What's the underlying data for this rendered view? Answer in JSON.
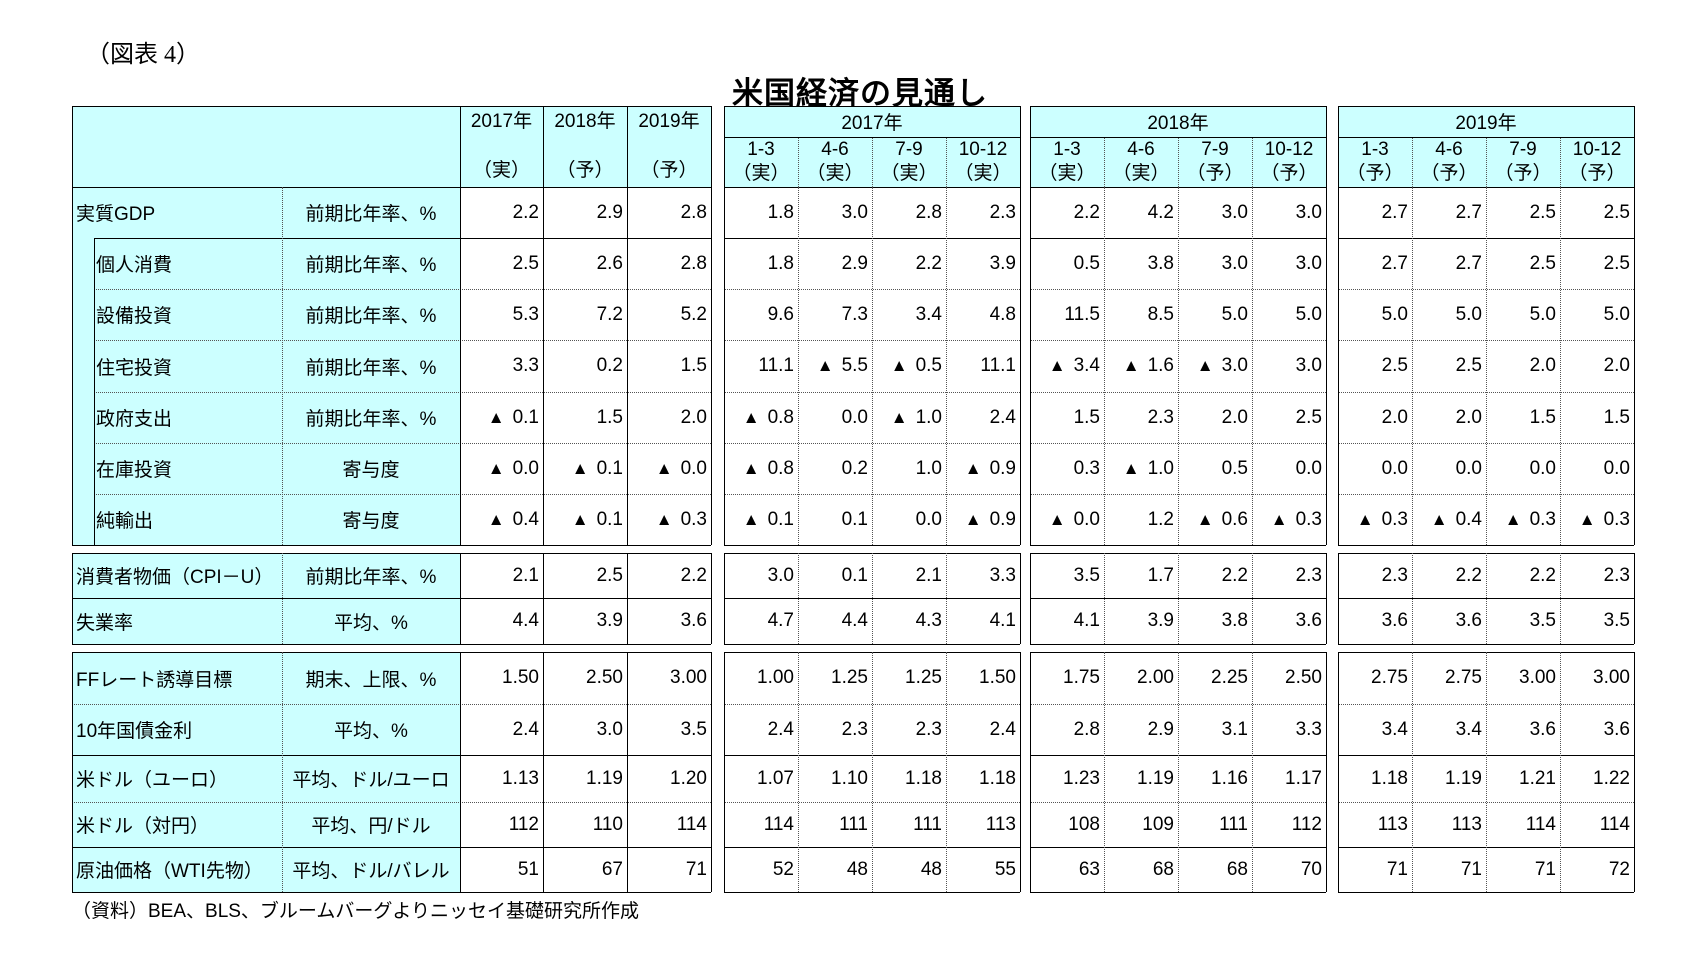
{
  "figure_label": "（図表 4）",
  "title": "米国経済の見通し",
  "header": {
    "annual": [
      {
        "year": "2017年",
        "status": "（実）"
      },
      {
        "year": "2018年",
        "status": "（予）"
      },
      {
        "year": "2019年",
        "status": "（予）"
      }
    ],
    "blocks": [
      {
        "year": "2017年",
        "quarters": [
          {
            "q": "1-3",
            "status": "（実）"
          },
          {
            "q": "4-6",
            "status": "（実）"
          },
          {
            "q": "7-9",
            "status": "（実）"
          },
          {
            "q": "10-12",
            "status": "（実）"
          }
        ]
      },
      {
        "year": "2018年",
        "quarters": [
          {
            "q": "1-3",
            "status": "（実）"
          },
          {
            "q": "4-6",
            "status": "（実）"
          },
          {
            "q": "7-9",
            "status": "（予）"
          },
          {
            "q": "10-12",
            "status": "（予）"
          }
        ]
      },
      {
        "year": "2019年",
        "quarters": [
          {
            "q": "1-3",
            "status": "（予）"
          },
          {
            "q": "4-6",
            "status": "（予）"
          },
          {
            "q": "7-9",
            "status": "（予）"
          },
          {
            "q": "10-12",
            "status": "（予）"
          }
        ]
      }
    ]
  },
  "negative_marker": "▲",
  "rows": [
    {
      "label": "実質GDP",
      "unit": "前期比年率、%",
      "annual": [
        "2.2",
        "2.9",
        "2.8"
      ],
      "q2017": [
        "1.8",
        "3.0",
        "2.8",
        "2.3"
      ],
      "q2018": [
        "2.2",
        "4.2",
        "3.0",
        "3.0"
      ],
      "q2019": [
        "2.7",
        "2.7",
        "2.5",
        "2.5"
      ]
    },
    {
      "label": "個人消費",
      "unit": "前期比年率、%",
      "annual": [
        "2.5",
        "2.6",
        "2.8"
      ],
      "q2017": [
        "1.8",
        "2.9",
        "2.2",
        "3.9"
      ],
      "q2018": [
        "0.5",
        "3.8",
        "3.0",
        "3.0"
      ],
      "q2019": [
        "2.7",
        "2.7",
        "2.5",
        "2.5"
      ]
    },
    {
      "label": "設備投資",
      "unit": "前期比年率、%",
      "annual": [
        "5.3",
        "7.2",
        "5.2"
      ],
      "q2017": [
        "9.6",
        "7.3",
        "3.4",
        "4.8"
      ],
      "q2018": [
        "11.5",
        "8.5",
        "5.0",
        "5.0"
      ],
      "q2019": [
        "5.0",
        "5.0",
        "5.0",
        "5.0"
      ]
    },
    {
      "label": "住宅投資",
      "unit": "前期比年率、%",
      "annual": [
        "3.3",
        "0.2",
        "1.5"
      ],
      "q2017": [
        "11.1",
        "▲ 5.5",
        "▲ 0.5",
        "11.1"
      ],
      "q2018": [
        "▲ 3.4",
        "▲ 1.6",
        "▲ 3.0",
        "3.0"
      ],
      "q2019": [
        "2.5",
        "2.5",
        "2.0",
        "2.0"
      ]
    },
    {
      "label": "政府支出",
      "unit": "前期比年率、%",
      "annual": [
        "▲ 0.1",
        "1.5",
        "2.0"
      ],
      "q2017": [
        "▲ 0.8",
        "0.0",
        "▲ 1.0",
        "2.4"
      ],
      "q2018": [
        "1.5",
        "2.3",
        "2.0",
        "2.5"
      ],
      "q2019": [
        "2.0",
        "2.0",
        "1.5",
        "1.5"
      ]
    },
    {
      "label": "在庫投資",
      "unit": "寄与度",
      "annual": [
        "▲ 0.0",
        "▲ 0.1",
        "▲ 0.0"
      ],
      "q2017": [
        "▲ 0.8",
        "0.2",
        "1.0",
        "▲ 0.9"
      ],
      "q2018": [
        "0.3",
        "▲ 1.0",
        "0.5",
        "0.0"
      ],
      "q2019": [
        "0.0",
        "0.0",
        "0.0",
        "0.0"
      ]
    },
    {
      "label": "純輸出",
      "unit": "寄与度",
      "annual": [
        "▲ 0.4",
        "▲ 0.1",
        "▲ 0.3"
      ],
      "q2017": [
        "▲ 0.1",
        "0.1",
        "0.0",
        "▲ 0.9"
      ],
      "q2018": [
        "▲ 0.0",
        "1.2",
        "▲ 0.6",
        "▲ 0.3"
      ],
      "q2019": [
        "▲ 0.3",
        "▲ 0.4",
        "▲ 0.3",
        "▲ 0.3"
      ]
    },
    {
      "label": "消費者物価（CPI－U）",
      "unit": "前期比年率、%",
      "annual": [
        "2.1",
        "2.5",
        "2.2"
      ],
      "q2017": [
        "3.0",
        "0.1",
        "2.1",
        "3.3"
      ],
      "q2018": [
        "3.5",
        "1.7",
        "2.2",
        "2.3"
      ],
      "q2019": [
        "2.3",
        "2.2",
        "2.2",
        "2.3"
      ]
    },
    {
      "label": "失業率",
      "unit": "平均、%",
      "annual": [
        "4.4",
        "3.9",
        "3.6"
      ],
      "q2017": [
        "4.7",
        "4.4",
        "4.3",
        "4.1"
      ],
      "q2018": [
        "4.1",
        "3.9",
        "3.8",
        "3.6"
      ],
      "q2019": [
        "3.6",
        "3.6",
        "3.5",
        "3.5"
      ]
    },
    {
      "label": "FFレート誘導目標",
      "unit": "期末、上限、%",
      "annual": [
        "1.50",
        "2.50",
        "3.00"
      ],
      "q2017": [
        "1.00",
        "1.25",
        "1.25",
        "1.50"
      ],
      "q2018": [
        "1.75",
        "2.00",
        "2.25",
        "2.50"
      ],
      "q2019": [
        "2.75",
        "2.75",
        "3.00",
        "3.00"
      ]
    },
    {
      "label": "10年国債金利",
      "unit": "平均、%",
      "annual": [
        "2.4",
        "3.0",
        "3.5"
      ],
      "q2017": [
        "2.4",
        "2.3",
        "2.3",
        "2.4"
      ],
      "q2018": [
        "2.8",
        "2.9",
        "3.1",
        "3.3"
      ],
      "q2019": [
        "3.4",
        "3.4",
        "3.6",
        "3.6"
      ]
    },
    {
      "label": "米ドル（ユーロ）",
      "unit": "平均、ドル/ユーロ",
      "annual": [
        "1.13",
        "1.19",
        "1.20"
      ],
      "q2017": [
        "1.07",
        "1.10",
        "1.18",
        "1.18"
      ],
      "q2018": [
        "1.23",
        "1.19",
        "1.16",
        "1.17"
      ],
      "q2019": [
        "1.18",
        "1.19",
        "1.21",
        "1.22"
      ]
    },
    {
      "label": "米ドル（対円）",
      "unit": "平均、円/ドル",
      "annual": [
        "112",
        "110",
        "114"
      ],
      "q2017": [
        "114",
        "111",
        "111",
        "113"
      ],
      "q2018": [
        "108",
        "109",
        "111",
        "112"
      ],
      "q2019": [
        "113",
        "113",
        "114",
        "114"
      ]
    },
    {
      "label": "原油価格（WTI先物）",
      "unit": "平均、ドル/バレル",
      "annual": [
        "51",
        "67",
        "71"
      ],
      "q2017": [
        "52",
        "48",
        "48",
        "55"
      ],
      "q2018": [
        "63",
        "68",
        "68",
        "70"
      ],
      "q2019": [
        "71",
        "71",
        "71",
        "72"
      ]
    }
  ],
  "footer": "（資料）BEA、BLS、ブルームバーグよりニッセイ基礎研究所作成",
  "colors": {
    "header_bg": "#ccffff",
    "cell_bg": "#ffffff",
    "border": "#000000"
  }
}
